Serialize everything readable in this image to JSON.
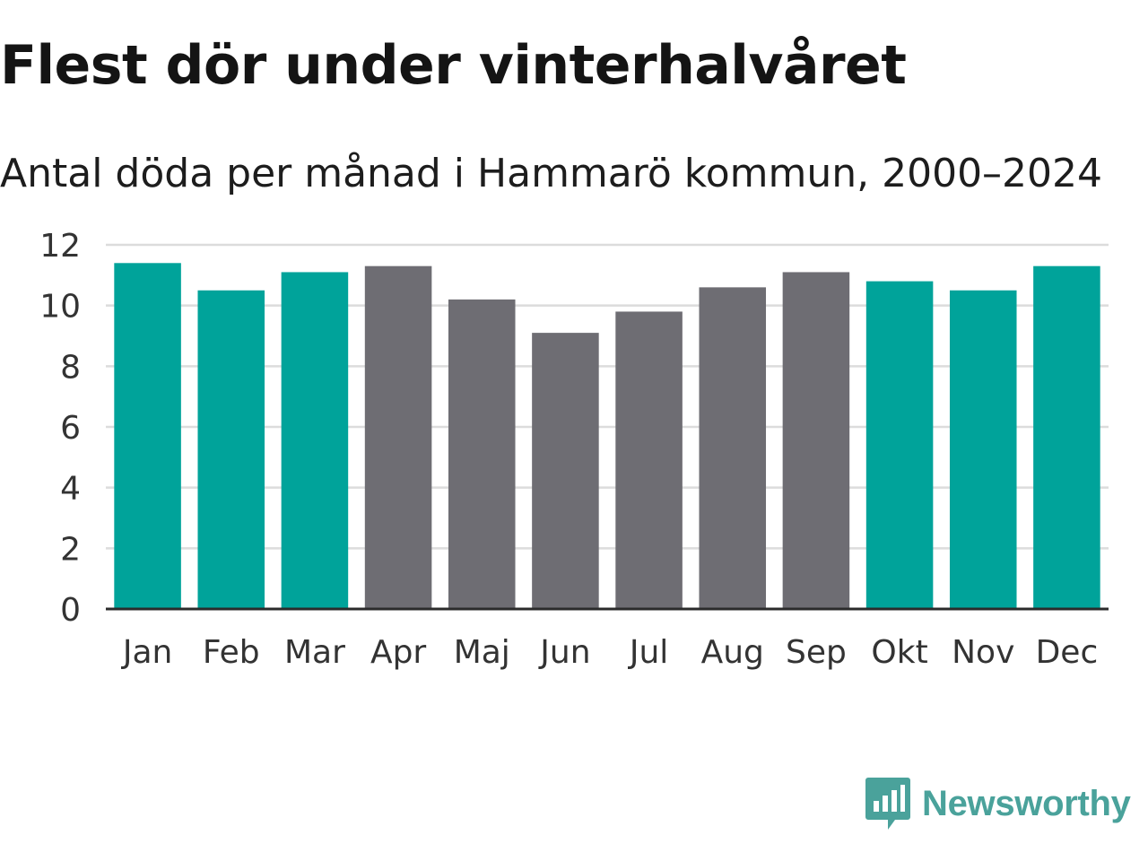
{
  "chart_data": {
    "type": "bar",
    "title": "Flest dör under vinterhalvåret",
    "subtitle": "Antal döda per månad i Hammarö kommun, 2000–2024",
    "categories": [
      "Jan",
      "Feb",
      "Mar",
      "Apr",
      "Maj",
      "Jun",
      "Jul",
      "Aug",
      "Sep",
      "Okt",
      "Nov",
      "Dec"
    ],
    "values": [
      11.4,
      10.5,
      11.1,
      11.3,
      10.2,
      9.1,
      9.8,
      10.6,
      11.1,
      10.8,
      10.5,
      11.3
    ],
    "bar_groups": [
      "winter",
      "winter",
      "winter",
      "summer",
      "summer",
      "summer",
      "summer",
      "summer",
      "summer",
      "winter",
      "winter",
      "winter"
    ],
    "colors": {
      "winter": "#00a39a",
      "summer": "#6e6d73",
      "grid": "#dcdcdc",
      "axis": "#2b2b2b"
    },
    "ylim": [
      0,
      12
    ],
    "yticks": [
      0,
      2,
      4,
      6,
      8,
      10,
      12
    ],
    "xlabel": "",
    "ylabel": "",
    "grid": true
  },
  "brand": {
    "name": "Newsworthy",
    "icon": "newsworthy-logo-icon",
    "color": "#4aa29b"
  }
}
